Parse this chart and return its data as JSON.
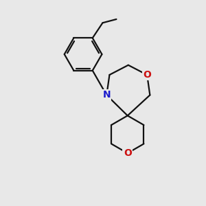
{
  "bg_color": "#e8e8e8",
  "bond_color": "#111111",
  "N_color": "#1a1acc",
  "O_color": "#cc1111",
  "bond_width": 1.6,
  "font_size": 10,
  "fig_size": [
    3.0,
    3.0
  ],
  "dpi": 100,
  "xlim": [
    -2.5,
    2.5
  ],
  "ylim": [
    -2.8,
    2.8
  ]
}
